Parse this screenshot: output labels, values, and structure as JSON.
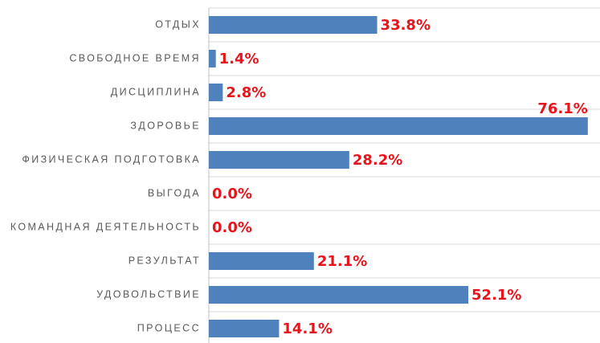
{
  "chart_data": {
    "type": "bar",
    "orientation": "horizontal",
    "categories": [
      "ОТДЫХ",
      "СВОБОДНОЕ ВРЕМЯ",
      "ДИСЦИПЛИНА",
      "ЗДОРОВЬЕ",
      "ФИЗИЧЕСКАЯ ПОДГОТОВКА",
      "ВЫГОДА",
      "КОМАНДНАЯ ДЕЯТЕЛЬНОСТЬ",
      "РЕЗУЛЬТАТ",
      "УДОВОЛЬСТВИЕ",
      "ПРОЦЕСС"
    ],
    "values": [
      33.8,
      1.4,
      2.8,
      76.1,
      28.2,
      0.0,
      0.0,
      21.1,
      52.1,
      14.1
    ],
    "value_labels": [
      "33.8%",
      "1.4%",
      "2.8%",
      "76.1%",
      "28.2%",
      "0.0%",
      "0.0%",
      "21.1%",
      "52.1%",
      "14.1%"
    ],
    "color": "#4f81bd",
    "label_color": "#e8141b",
    "xlim": [
      0,
      80
    ]
  }
}
